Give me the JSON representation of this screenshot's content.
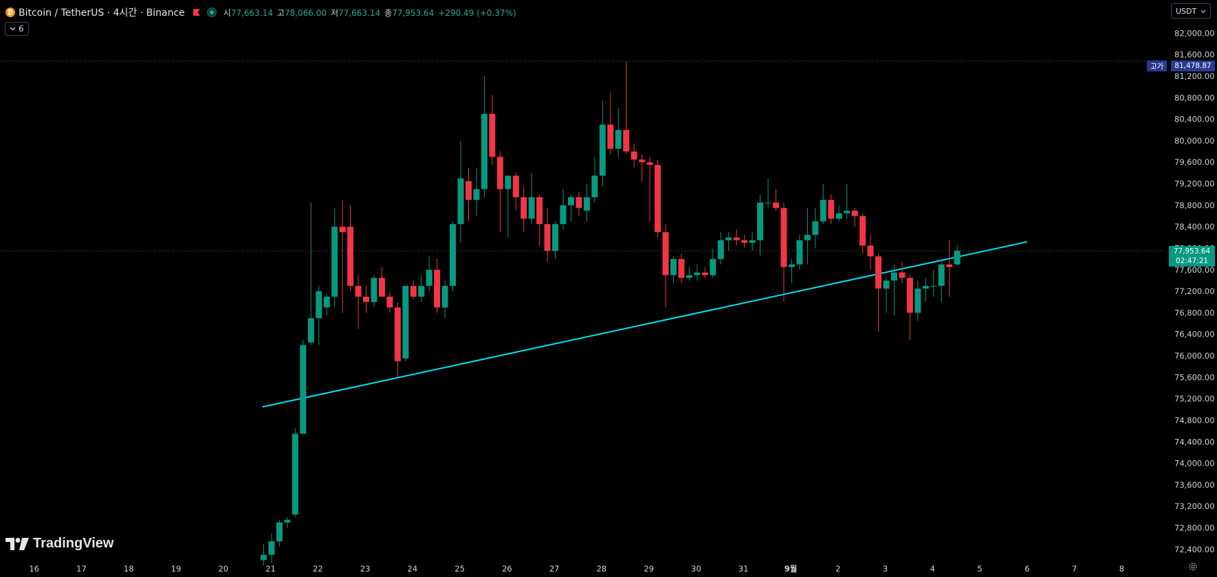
{
  "header": {
    "symbol": "Bitcoin / TetherUS · 4시간 · Binance",
    "coin_icon": "bitcoin-icon",
    "flag_icon": "flag-icon",
    "market_status_icon": "market-open-dot-icon",
    "open_label": "시",
    "open_value": "77,663.14",
    "high_label": "고",
    "high_value": "78,066.00",
    "low_label": "저",
    "low_value": "77,663.14",
    "close_label": "종",
    "close_value": "77,953.64",
    "change": "+290.49 (+0.37%)"
  },
  "indicators_toggle": {
    "icon": "chevron-down-icon",
    "count": "6"
  },
  "currency_selector": {
    "value": "USDT",
    "icon": "chevron-down-icon"
  },
  "brand": {
    "name": "TradingView",
    "icon": "tradingview-logo-icon"
  },
  "high_marker": {
    "label": "고가",
    "value": "81,478.87"
  },
  "current_price": {
    "value": "77,953.64",
    "countdown": "02:47:21"
  },
  "settings_icon": "gear-icon",
  "colors": {
    "up": "#089981",
    "down": "#f23645",
    "trendline": "#00e5f2",
    "background": "#000000",
    "price_tag": "#089981",
    "high_tag": "#2a3a8f"
  },
  "chart_data": {
    "type": "candlestick",
    "ylim": [
      72100,
      82300
    ],
    "y_ticks": [
      "82,000.00",
      "81,600.00",
      "81,200.00",
      "80,800.00",
      "80,400.00",
      "80,000.00",
      "79,600.00",
      "79,200.00",
      "78,800.00",
      "78,400.00",
      "78,000.00",
      "77,600.00",
      "77,200.00",
      "76,800.00",
      "76,400.00",
      "76,000.00",
      "75,600.00",
      "75,200.00",
      "74,800.00",
      "74,400.00",
      "74,000.00",
      "73,600.00",
      "73,200.00",
      "72,800.00",
      "72,400.00"
    ],
    "x_ticks": [
      "16",
      "17",
      "18",
      "19",
      "20",
      "21",
      "22",
      "23",
      "24",
      "25",
      "26",
      "27",
      "28",
      "29",
      "30",
      "31",
      "9월",
      "2",
      "3",
      "4",
      "5",
      "6",
      "7",
      "8"
    ],
    "candles": [
      {
        "o": 72200,
        "h": 72500,
        "l": 72100,
        "c": 72300
      },
      {
        "o": 72300,
        "h": 72700,
        "l": 72150,
        "c": 72550
      },
      {
        "o": 72550,
        "h": 72950,
        "l": 72450,
        "c": 72900
      },
      {
        "o": 72900,
        "h": 73000,
        "l": 72800,
        "c": 72950
      },
      {
        "o": 73050,
        "h": 74650,
        "l": 73000,
        "c": 74550
      },
      {
        "o": 74550,
        "h": 76300,
        "l": 74550,
        "c": 76200
      },
      {
        "o": 76250,
        "h": 78850,
        "l": 76200,
        "c": 76700
      },
      {
        "o": 76700,
        "h": 77300,
        "l": 76200,
        "c": 77200
      },
      {
        "o": 76900,
        "h": 77150,
        "l": 76750,
        "c": 77100
      },
      {
        "o": 77100,
        "h": 78750,
        "l": 76900,
        "c": 78400
      },
      {
        "o": 78400,
        "h": 78900,
        "l": 76800,
        "c": 78300
      },
      {
        "o": 78400,
        "h": 78800,
        "l": 77200,
        "c": 77300
      },
      {
        "o": 77300,
        "h": 77500,
        "l": 76500,
        "c": 77100
      },
      {
        "o": 77100,
        "h": 77300,
        "l": 76800,
        "c": 77000
      },
      {
        "o": 77000,
        "h": 77500,
        "l": 76900,
        "c": 77450
      },
      {
        "o": 77450,
        "h": 77650,
        "l": 77100,
        "c": 77100
      },
      {
        "o": 77100,
        "h": 77200,
        "l": 76800,
        "c": 76900
      },
      {
        "o": 76900,
        "h": 77000,
        "l": 75600,
        "c": 75900
      },
      {
        "o": 75950,
        "h": 77300,
        "l": 75900,
        "c": 77300
      },
      {
        "o": 77300,
        "h": 77400,
        "l": 77050,
        "c": 77100
      },
      {
        "o": 77100,
        "h": 77500,
        "l": 77000,
        "c": 77300
      },
      {
        "o": 77300,
        "h": 77850,
        "l": 77200,
        "c": 77600
      },
      {
        "o": 77600,
        "h": 77800,
        "l": 76800,
        "c": 76900
      },
      {
        "o": 76900,
        "h": 77400,
        "l": 76700,
        "c": 77300
      },
      {
        "o": 77300,
        "h": 78500,
        "l": 77200,
        "c": 78450
      },
      {
        "o": 78450,
        "h": 80000,
        "l": 78100,
        "c": 79300
      },
      {
        "o": 79250,
        "h": 79500,
        "l": 78500,
        "c": 78900
      },
      {
        "o": 78900,
        "h": 79500,
        "l": 78600,
        "c": 79100
      },
      {
        "o": 79100,
        "h": 81200,
        "l": 78950,
        "c": 80500
      },
      {
        "o": 80500,
        "h": 80850,
        "l": 79550,
        "c": 79700
      },
      {
        "o": 79700,
        "h": 79800,
        "l": 78300,
        "c": 79100
      },
      {
        "o": 79100,
        "h": 79350,
        "l": 78200,
        "c": 79350
      },
      {
        "o": 79350,
        "h": 79400,
        "l": 78700,
        "c": 78950
      },
      {
        "o": 78950,
        "h": 79150,
        "l": 78300,
        "c": 78550
      },
      {
        "o": 78550,
        "h": 79400,
        "l": 78450,
        "c": 78950
      },
      {
        "o": 78950,
        "h": 79000,
        "l": 78050,
        "c": 78450
      },
      {
        "o": 78450,
        "h": 78750,
        "l": 77750,
        "c": 77950
      },
      {
        "o": 77950,
        "h": 78500,
        "l": 77800,
        "c": 78450
      },
      {
        "o": 78450,
        "h": 79100,
        "l": 78350,
        "c": 78800
      },
      {
        "o": 78800,
        "h": 79000,
        "l": 78500,
        "c": 78950
      },
      {
        "o": 78950,
        "h": 79050,
        "l": 78600,
        "c": 78750
      },
      {
        "o": 78700,
        "h": 79200,
        "l": 78500,
        "c": 78950
      },
      {
        "o": 78950,
        "h": 79700,
        "l": 78850,
        "c": 79350
      },
      {
        "o": 79350,
        "h": 80750,
        "l": 79150,
        "c": 80300
      },
      {
        "o": 80300,
        "h": 80900,
        "l": 79750,
        "c": 79850
      },
      {
        "o": 79850,
        "h": 80600,
        "l": 79700,
        "c": 80200
      },
      {
        "o": 80200,
        "h": 81480,
        "l": 79750,
        "c": 79800
      },
      {
        "o": 79800,
        "h": 79950,
        "l": 79500,
        "c": 79650
      },
      {
        "o": 79650,
        "h": 79750,
        "l": 79250,
        "c": 79600
      },
      {
        "o": 79600,
        "h": 79700,
        "l": 78500,
        "c": 79550
      },
      {
        "o": 79550,
        "h": 79650,
        "l": 78200,
        "c": 78300
      },
      {
        "o": 78300,
        "h": 78450,
        "l": 76900,
        "c": 77500
      },
      {
        "o": 77500,
        "h": 77850,
        "l": 77350,
        "c": 77800
      },
      {
        "o": 77800,
        "h": 77900,
        "l": 77350,
        "c": 77450
      },
      {
        "o": 77450,
        "h": 77650,
        "l": 77400,
        "c": 77500
      },
      {
        "o": 77500,
        "h": 77700,
        "l": 77400,
        "c": 77550
      },
      {
        "o": 77550,
        "h": 77650,
        "l": 77450,
        "c": 77500
      },
      {
        "o": 77500,
        "h": 78000,
        "l": 77450,
        "c": 77800
      },
      {
        "o": 77800,
        "h": 78300,
        "l": 77700,
        "c": 78150
      },
      {
        "o": 78150,
        "h": 78300,
        "l": 77950,
        "c": 78200
      },
      {
        "o": 78200,
        "h": 78350,
        "l": 78050,
        "c": 78150
      },
      {
        "o": 78150,
        "h": 78250,
        "l": 78000,
        "c": 78100
      },
      {
        "o": 78100,
        "h": 78300,
        "l": 77950,
        "c": 78150
      },
      {
        "o": 78150,
        "h": 79000,
        "l": 77850,
        "c": 78850
      },
      {
        "o": 78850,
        "h": 79300,
        "l": 78750,
        "c": 78850
      },
      {
        "o": 78850,
        "h": 79100,
        "l": 78700,
        "c": 78750
      },
      {
        "o": 78750,
        "h": 78850,
        "l": 77000,
        "c": 77650
      },
      {
        "o": 77650,
        "h": 77800,
        "l": 77350,
        "c": 77700
      },
      {
        "o": 77700,
        "h": 78250,
        "l": 77600,
        "c": 78150
      },
      {
        "o": 78150,
        "h": 78750,
        "l": 77700,
        "c": 78250
      },
      {
        "o": 78250,
        "h": 78750,
        "l": 78000,
        "c": 78500
      },
      {
        "o": 78500,
        "h": 79200,
        "l": 78450,
        "c": 78900
      },
      {
        "o": 78900,
        "h": 79000,
        "l": 78450,
        "c": 78550
      },
      {
        "o": 78550,
        "h": 78800,
        "l": 78500,
        "c": 78650
      },
      {
        "o": 78650,
        "h": 79200,
        "l": 78550,
        "c": 78700
      },
      {
        "o": 78700,
        "h": 78750,
        "l": 78400,
        "c": 78600
      },
      {
        "o": 78600,
        "h": 78650,
        "l": 77900,
        "c": 78050
      },
      {
        "o": 78050,
        "h": 78250,
        "l": 77600,
        "c": 77850
      },
      {
        "o": 77850,
        "h": 77900,
        "l": 76450,
        "c": 77250
      },
      {
        "o": 77250,
        "h": 77450,
        "l": 76800,
        "c": 77400
      },
      {
        "o": 77400,
        "h": 77700,
        "l": 76750,
        "c": 77550
      },
      {
        "o": 77550,
        "h": 77750,
        "l": 77350,
        "c": 77450
      },
      {
        "o": 77450,
        "h": 77500,
        "l": 76300,
        "c": 76800
      },
      {
        "o": 76800,
        "h": 77400,
        "l": 76650,
        "c": 77250
      },
      {
        "o": 77250,
        "h": 77450,
        "l": 77000,
        "c": 77300
      },
      {
        "o": 77300,
        "h": 77600,
        "l": 77100,
        "c": 77300
      },
      {
        "o": 77300,
        "h": 77800,
        "l": 77000,
        "c": 77700
      },
      {
        "o": 77700,
        "h": 78150,
        "l": 77100,
        "c": 77650
      },
      {
        "o": 77700,
        "h": 78066,
        "l": 77663,
        "c": 77954
      }
    ],
    "trendline": {
      "from": {
        "x_tick": "21",
        "y": 75050
      },
      "to": {
        "x_tick": "6",
        "y": 78120
      }
    },
    "horizontal_lines": [
      81479,
      77954
    ]
  }
}
